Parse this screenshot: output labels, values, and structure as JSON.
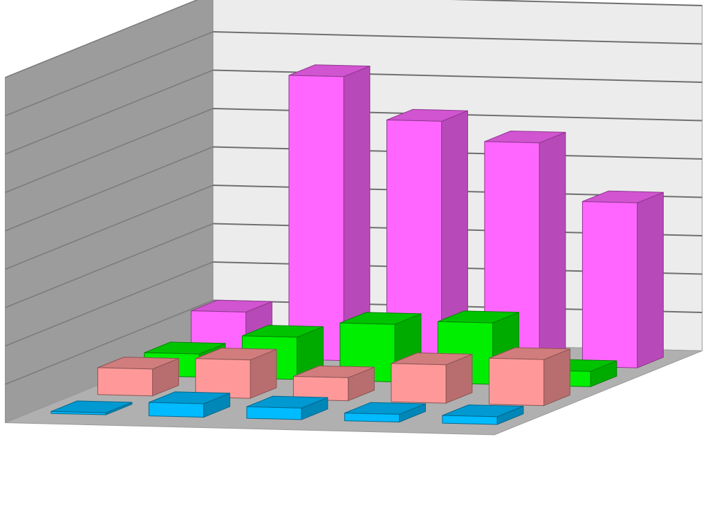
{
  "chart_data": {
    "type": "bar",
    "subtype": "3d-grouped-depth",
    "title": "",
    "xlabel": "",
    "ylabel": "",
    "ylim": [
      0,
      9
    ],
    "grid": true,
    "legend": "none",
    "categories": [
      "",
      "",
      "",
      "",
      ""
    ],
    "series": [
      {
        "color": "#ff66ff",
        "values": [
          1.2,
          7.4,
          6.3,
          5.8,
          4.3
        ]
      },
      {
        "color": "#00ee00",
        "values": [
          0.6,
          1.1,
          1.5,
          1.6,
          0.4
        ]
      },
      {
        "color": "#ff9999",
        "values": [
          0.7,
          1.0,
          0.6,
          1.0,
          1.2
        ]
      },
      {
        "color": "#00bbff",
        "values": [
          0.05,
          0.35,
          0.3,
          0.2,
          0.2
        ]
      }
    ]
  }
}
